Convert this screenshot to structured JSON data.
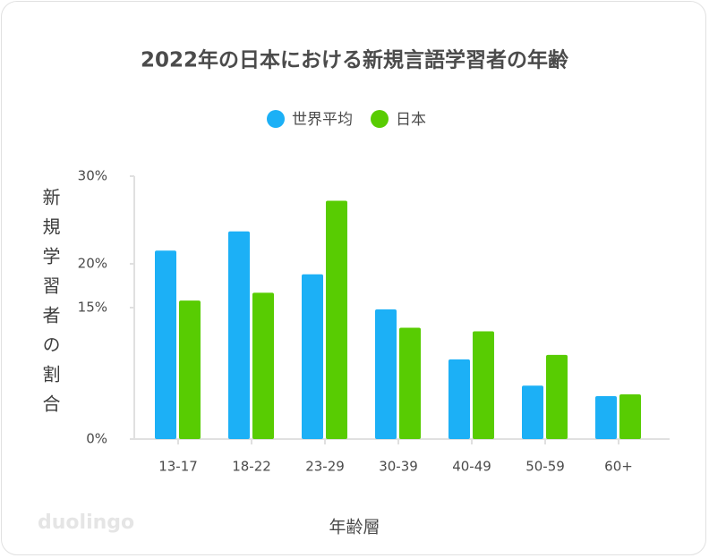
{
  "chart_data": {
    "type": "bar",
    "title": "2022年の日本における新規言語学習者の年齢",
    "x_label": "年齢層",
    "y_label": "新規学習者の割合",
    "watermark": "duolingo",
    "categories": [
      "13-17",
      "18-22",
      "23-29",
      "30-39",
      "40-49",
      "50-59",
      "60+"
    ],
    "series": [
      {
        "name": "世界平均",
        "color": "#1cb0f6",
        "values": [
          21.5,
          23.7,
          18.8,
          14.8,
          9.1,
          6.1,
          4.9
        ]
      },
      {
        "name": "日本",
        "color": "#58cc02",
        "values": [
          15.8,
          16.7,
          27.2,
          12.7,
          12.3,
          9.6,
          5.1
        ]
      }
    ],
    "ylim": [
      0,
      30
    ],
    "yticks": [
      {
        "value": 0,
        "label": "0%"
      },
      {
        "value": 15,
        "label": "15%"
      },
      {
        "value": 20,
        "label": "20%"
      },
      {
        "value": 30,
        "label": "30%"
      }
    ],
    "grid": false,
    "legend": "top"
  }
}
